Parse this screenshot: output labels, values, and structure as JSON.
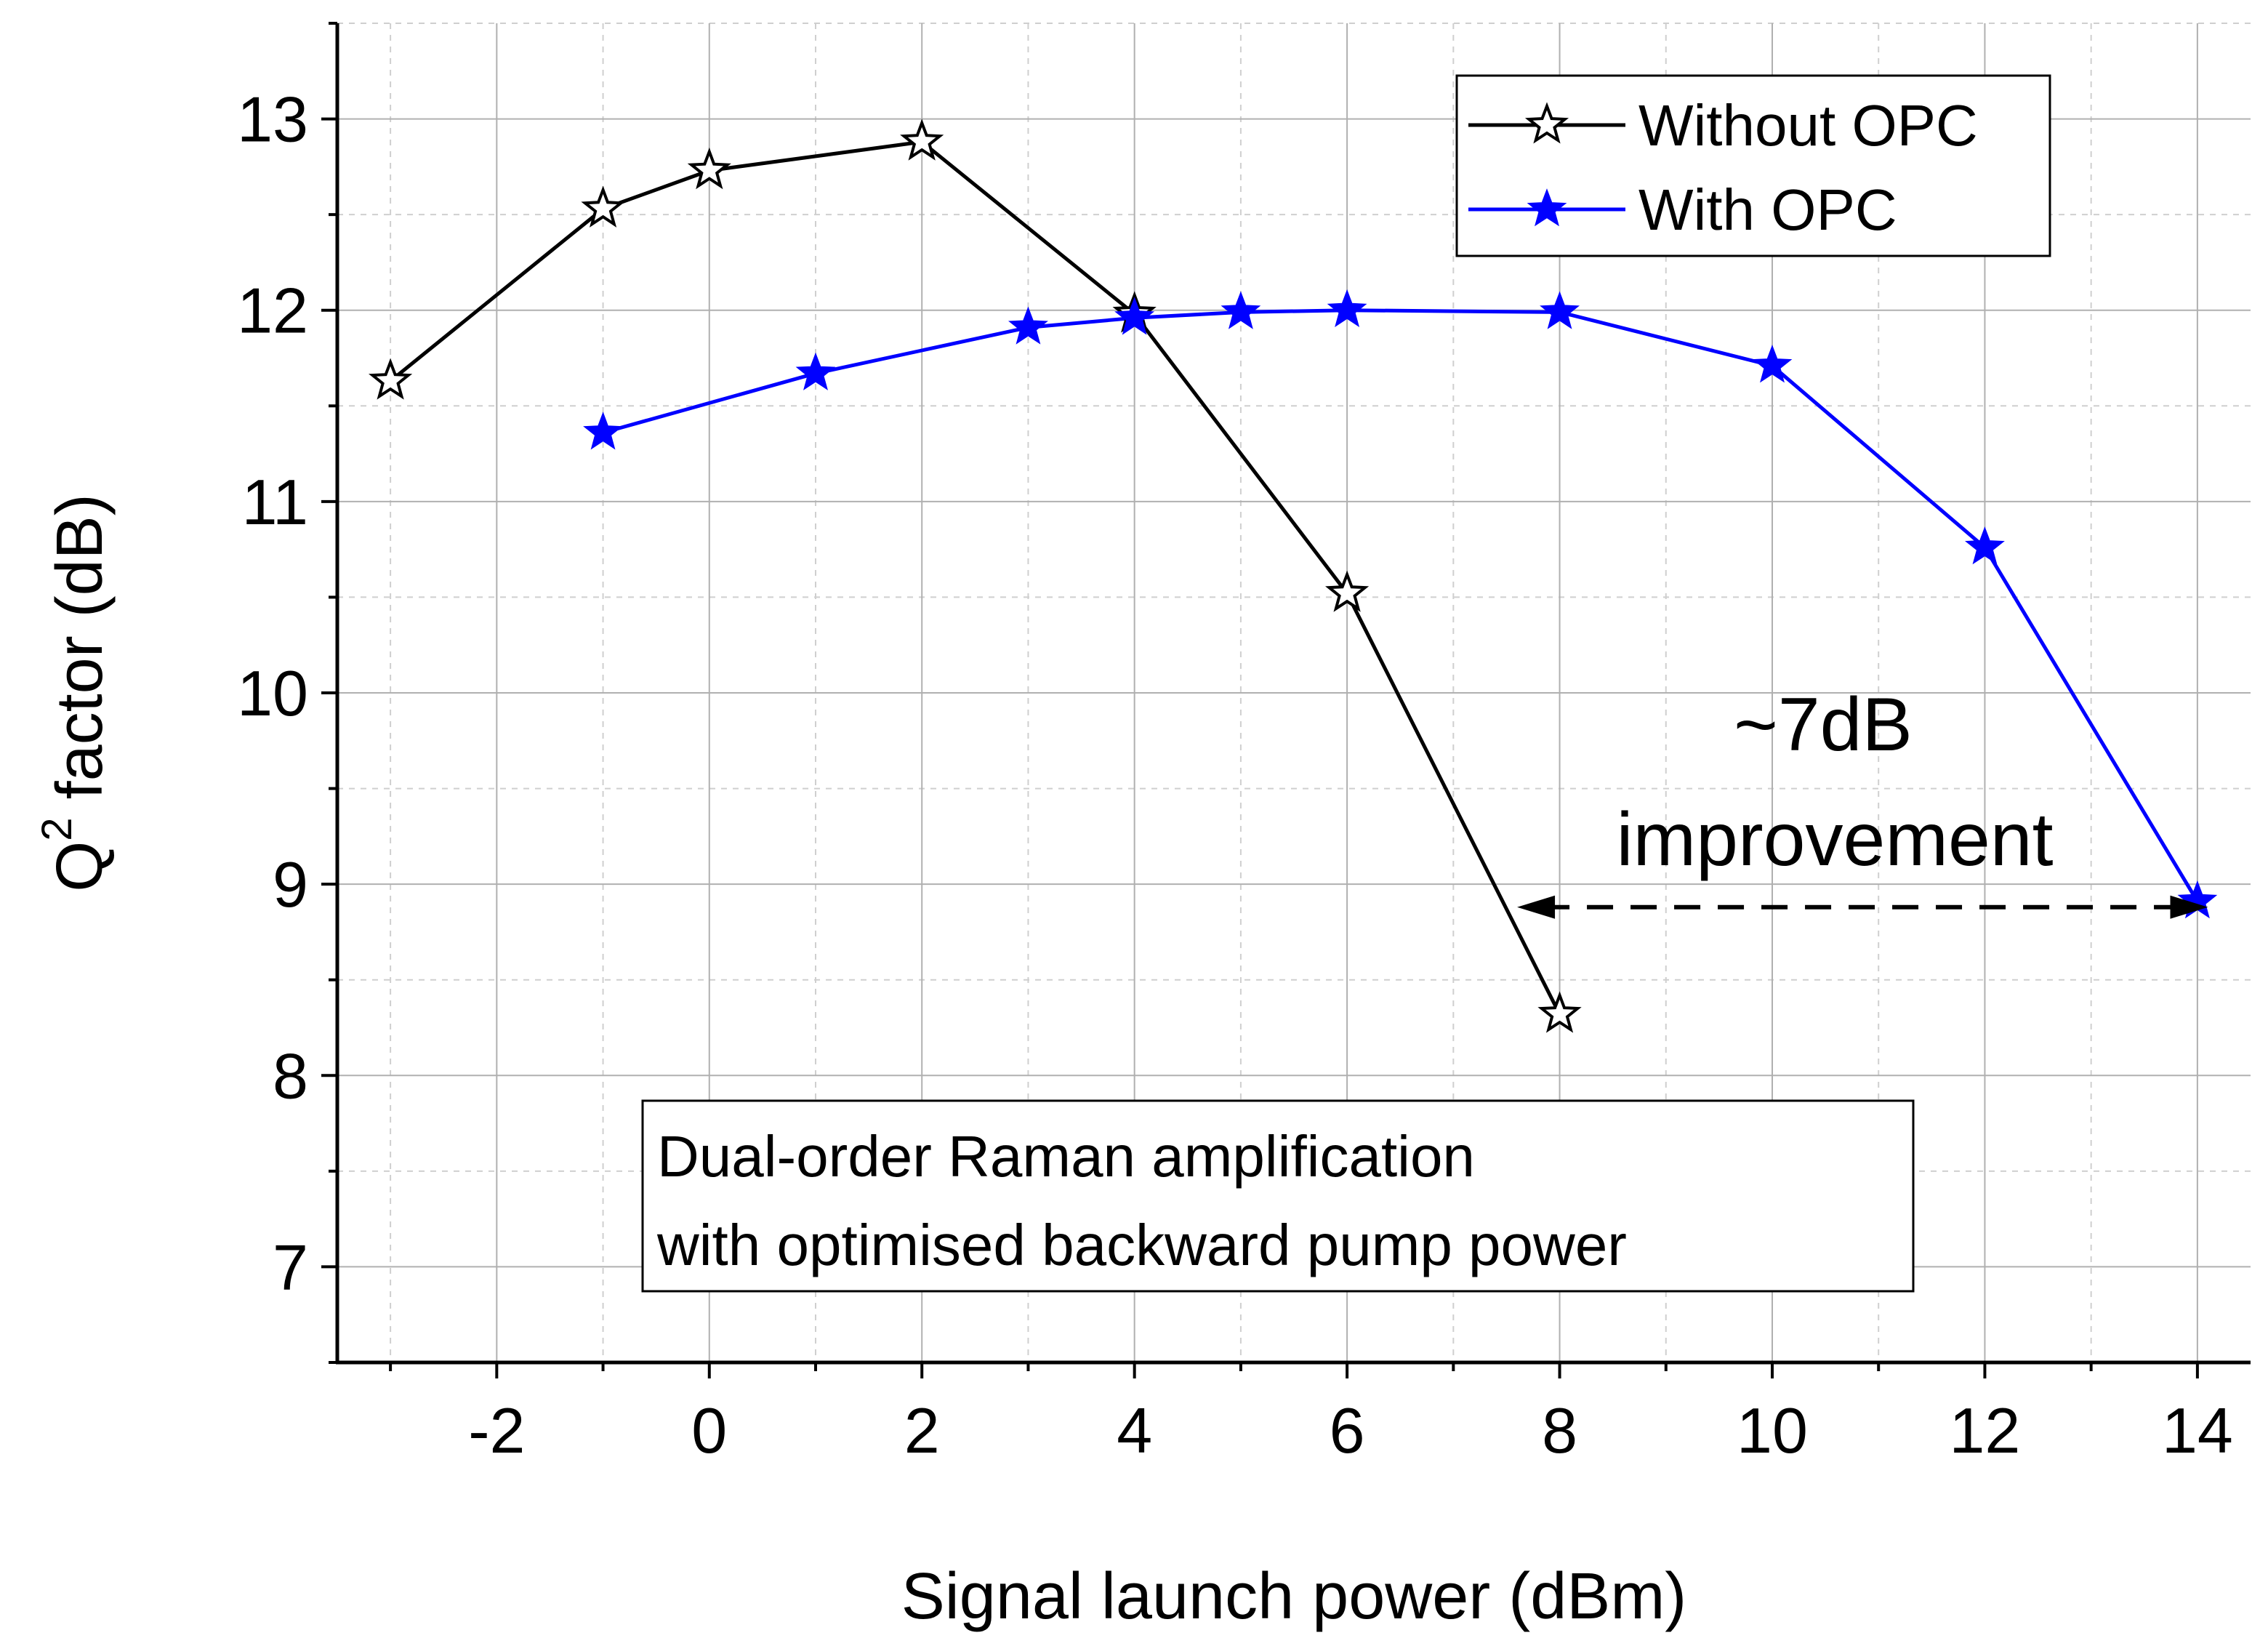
{
  "chart_data": {
    "type": "line",
    "title": "",
    "xlabel": "Signal launch power (dBm)",
    "ylabel_main": "Q",
    "ylabel_sup": "2",
    "ylabel_rest": " factor (dB)",
    "xlim": [
      -3.5,
      14.5
    ],
    "ylim": [
      6.5,
      13.5
    ],
    "x_ticks": [
      -2,
      0,
      2,
      4,
      6,
      8,
      10,
      12,
      14
    ],
    "y_ticks": [
      7,
      8,
      9,
      10,
      11,
      12,
      13
    ],
    "x_minor_ticks": [
      -3,
      -1,
      1,
      3,
      5,
      7,
      9,
      11,
      13
    ],
    "y_minor_ticks": [
      6.5,
      7.5,
      8.5,
      9.5,
      10.5,
      11.5,
      12.5,
      13.5
    ],
    "grid": true,
    "legend_position": "top-right",
    "series": [
      {
        "name": "Without OPC",
        "color": "#000000",
        "marker": "open-star",
        "x": [
          -3,
          -1,
          0,
          2,
          4,
          6,
          8
        ],
        "y": [
          11.63,
          12.53,
          12.73,
          12.88,
          11.98,
          10.52,
          8.32
        ]
      },
      {
        "name": "With OPC",
        "color": "#0000ff",
        "marker": "filled-star",
        "x": [
          -1,
          1,
          3,
          4,
          5,
          6,
          8,
          10,
          12,
          14
        ],
        "y": [
          11.36,
          11.67,
          11.91,
          11.96,
          11.99,
          12.0,
          11.99,
          11.71,
          10.76,
          8.91
        ]
      }
    ],
    "annotations": {
      "improvement_line1": "~7dB",
      "improvement_line2": "improvement",
      "arrow_y": 8.88,
      "arrow_x_from": 7.6,
      "arrow_x_to": 14.1,
      "note_line1": "Dual-order Raman amplification",
      "note_line2": "with optimised backward pump power"
    }
  }
}
